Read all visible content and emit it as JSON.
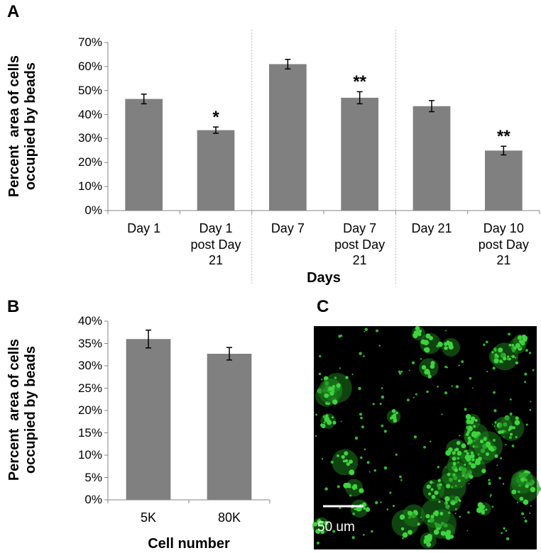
{
  "chart_data": [
    {
      "type": "bar",
      "panel_label": "A",
      "ylabel": "Percent  area of cells occupied by beads",
      "xlabel": "Days",
      "categories": [
        "Day 1",
        "Day 1 post Day 21",
        "Day 7",
        "Day 7 post Day 21",
        "Day 21",
        "Day 10 post Day 21"
      ],
      "values": [
        46.5,
        33.5,
        61,
        47,
        43.5,
        25
      ],
      "errors": [
        2,
        1.3,
        2,
        2.5,
        2.3,
        1.8
      ],
      "annotations": [
        null,
        "*",
        null,
        "**",
        null,
        "**"
      ],
      "color": "#808080",
      "ylim": [
        0,
        70
      ],
      "yticks": [
        {
          "value": 0,
          "label": "0%"
        },
        {
          "value": 10,
          "label": "10%"
        },
        {
          "value": 20,
          "label": "20%"
        },
        {
          "value": 30,
          "label": "30%"
        },
        {
          "value": 40,
          "label": "40%"
        },
        {
          "value": 50,
          "label": "50%"
        },
        {
          "value": 60,
          "label": "60%"
        },
        {
          "value": 70,
          "label": "70%"
        }
      ],
      "grid": false
    },
    {
      "type": "bar",
      "panel_label": "B",
      "ylabel": "Percent  area of cells occupied by beads",
      "xlabel": "Cell number",
      "categories": [
        "5K",
        "80K"
      ],
      "values": [
        36,
        32.7
      ],
      "errors": [
        2,
        1.4
      ],
      "color": "#808080",
      "ylim": [
        0,
        40
      ],
      "yticks": [
        {
          "value": 0,
          "label": "0%"
        },
        {
          "value": 5,
          "label": "5%"
        },
        {
          "value": 10,
          "label": "10%"
        },
        {
          "value": 15,
          "label": "15%"
        },
        {
          "value": 20,
          "label": "20%"
        },
        {
          "value": 25,
          "label": "25%"
        },
        {
          "value": 30,
          "label": "30%"
        },
        {
          "value": 35,
          "label": "35%"
        },
        {
          "value": 40,
          "label": "40%"
        }
      ],
      "grid": false
    }
  ],
  "image": {
    "panel_label": "C",
    "scale_bar_label": "50 um"
  }
}
